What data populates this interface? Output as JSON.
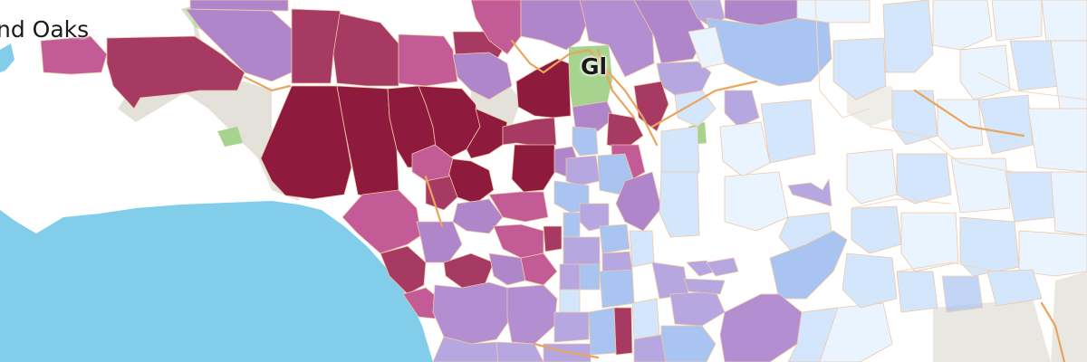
{
  "map": {
    "labels": {
      "thousand_oaks": "nd Oaks",
      "glendale": "Gl"
    },
    "colors": {
      "ocean": "#82cdea",
      "land": "#ffffff",
      "terrain": "#e4e1da",
      "park": "#a6d38e",
      "boundary": "#f3caa8",
      "highway": "#e9a55f",
      "choropleth_scale": [
        "#e9f4fe",
        "#d3e6fb",
        "#a9c4f0",
        "#b6a7e1",
        "#af86ca",
        "#c25b96",
        "#a63a63",
        "#8e1b3d"
      ]
    }
  }
}
